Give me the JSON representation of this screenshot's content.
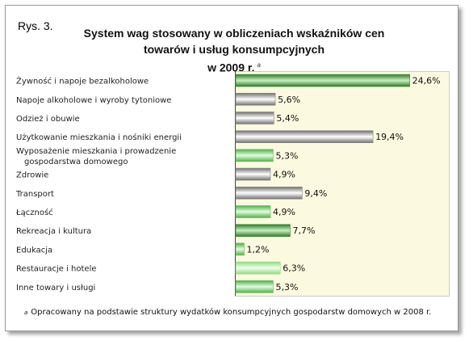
{
  "figure_label": "Rys. 3.",
  "title_lines": [
    "System wag stosowany w obliczeniach wskaźników cen",
    "towarów i usług konsumpcyjnych",
    "w 2009 r."
  ],
  "title_note_mark": "a",
  "footnote": {
    "mark": "a",
    "text": "Opracowany na podstawie struktury wydatków konsumpcyjnych gospodarstw domowych w 2008 r."
  },
  "chart_data": {
    "type": "bar",
    "orientation": "horizontal",
    "title": "System wag stosowany w obliczeniach wskaźników cen towarów i usług konsumpcyjnych w 2009 r.",
    "categories": [
      "Żywność i napoje bezalkoholowe",
      "Napoje alkoholowe i wyroby tytoniowe",
      "Odzież i obuwie",
      "Użytkowanie mieszkania i nośniki energii",
      [
        "Wyposażenie mieszkania i prowadzenie",
        "gospodarstwa domowego"
      ],
      "Zdrowie",
      "Transport",
      "Łączność",
      "Rekreacja i kultura",
      "Edukacja",
      "Restauracje i hotele",
      "Inne towary i usługi"
    ],
    "values": [
      24.6,
      5.6,
      5.4,
      19.4,
      5.3,
      4.9,
      9.4,
      4.9,
      7.7,
      1.2,
      6.3,
      5.3
    ],
    "value_labels": [
      "24,6%",
      "5,6%",
      "5,4%",
      "19,4%",
      "5,3%",
      "4,9%",
      "9,4%",
      "4,9%",
      "7,7%",
      "1,2%",
      "6,3%",
      "5,3%"
    ],
    "bar_colors": [
      "#3f8f3a",
      "#8a8a8a",
      "#8a8a8a",
      "#8a8a8a",
      "#5fbf55",
      "#8a8a8a",
      "#8a8a8a",
      "#5fbf55",
      "#3f8f3a",
      "#5fbf55",
      "#8fdc80",
      "#5fbf55"
    ],
    "xlim": [
      0,
      30
    ],
    "background_color": "#fbf9df"
  }
}
